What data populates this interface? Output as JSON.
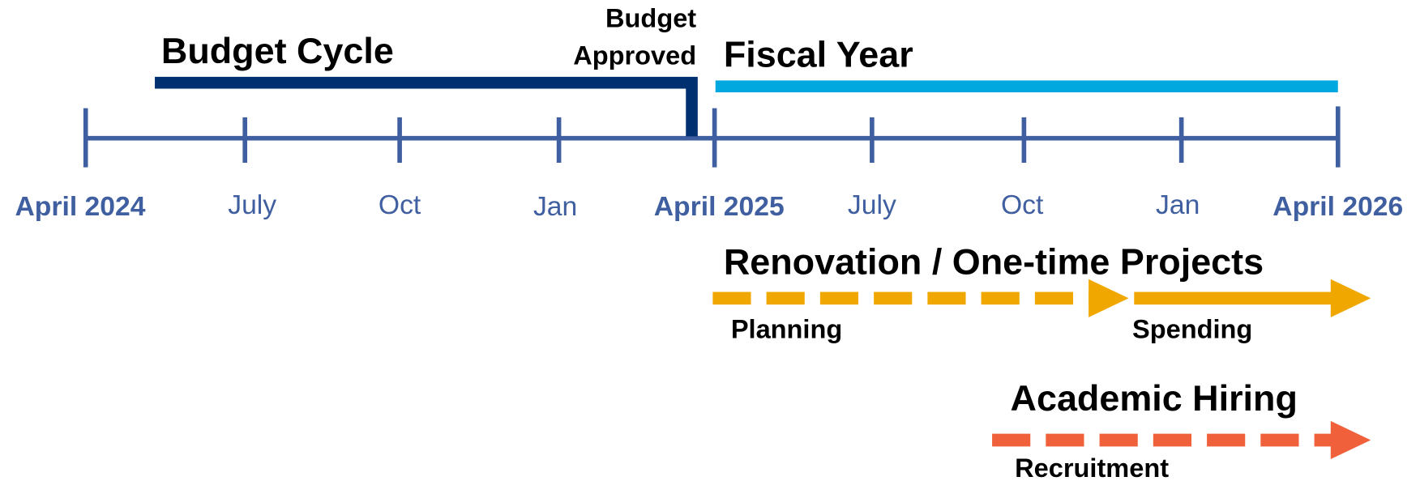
{
  "timeline": {
    "ticks": [
      "April 2024",
      "July",
      "Oct",
      "Jan",
      "April 2025",
      "July",
      "Oct",
      "Jan",
      "April 2026"
    ]
  },
  "budget_cycle": {
    "title": "Budget Cycle",
    "milestone": [
      "Budget",
      "Approved"
    ]
  },
  "fiscal_year": {
    "title": "Fiscal Year"
  },
  "renovation": {
    "title": "Renovation / One-time Projects",
    "phases": [
      "Planning",
      "Spending"
    ]
  },
  "hiring": {
    "title": "Academic Hiring",
    "phases": [
      "Recruitment"
    ]
  }
}
